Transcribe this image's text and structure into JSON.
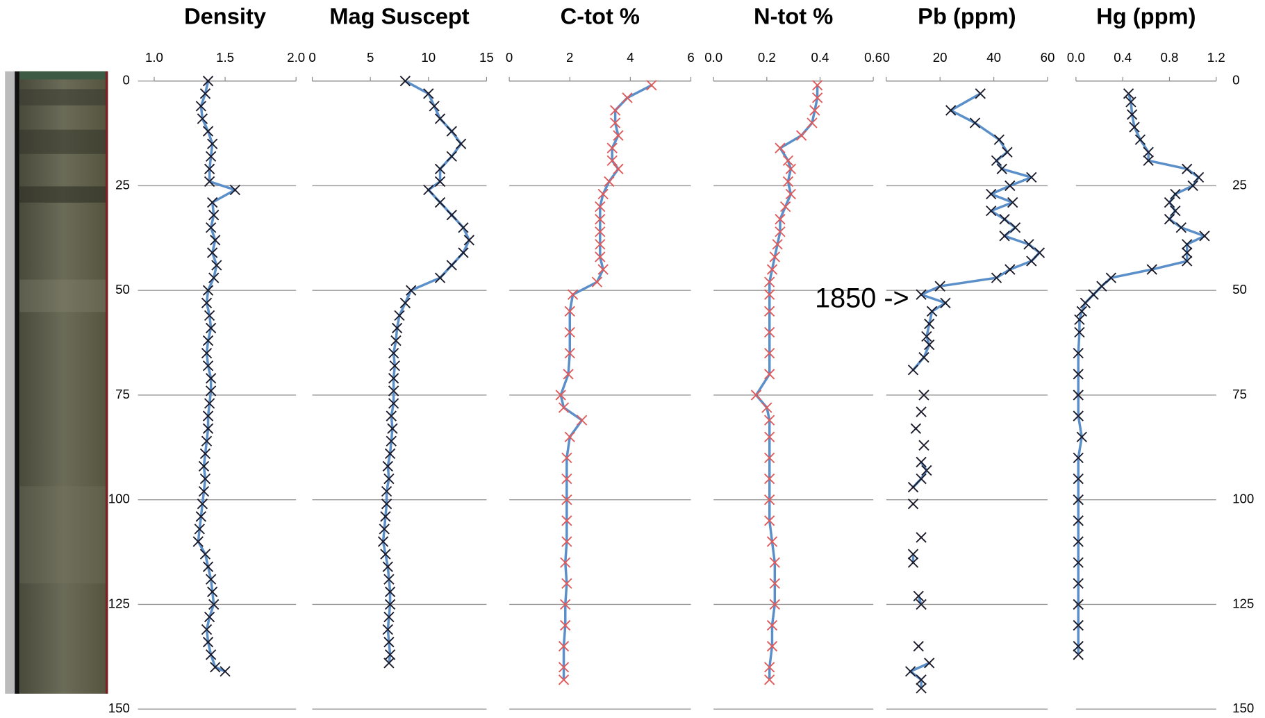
{
  "chart_data": [
    {
      "type": "line",
      "title": "Density",
      "xlim": [
        1.0,
        2.0
      ],
      "xticks": [
        {
          "value": 1.0,
          "label": "1.0"
        },
        1.5,
        {
          "value": 2.0,
          "label": "2.0"
        }
      ],
      "ylim": [
        0,
        150
      ],
      "yticks": [
        0,
        25,
        50,
        75,
        100,
        125,
        150
      ],
      "series": [
        {
          "color": "#5b8fc9",
          "marker_color": "#1a1a2a",
          "y": [
            0,
            3,
            6,
            9,
            12,
            15,
            18,
            21,
            24,
            26,
            29,
            32,
            35,
            38,
            41,
            44,
            47,
            50,
            53,
            56,
            59,
            62,
            65,
            68,
            71,
            74,
            77,
            80,
            83,
            86,
            89,
            92,
            95,
            98,
            101,
            104,
            107,
            110,
            113,
            116,
            119,
            122,
            125,
            128,
            131,
            134,
            137,
            140,
            141
          ],
          "values": [
            1.38,
            1.36,
            1.33,
            1.34,
            1.38,
            1.41,
            1.4,
            1.39,
            1.39,
            1.57,
            1.41,
            1.42,
            1.4,
            1.43,
            1.41,
            1.44,
            1.42,
            1.38,
            1.37,
            1.39,
            1.4,
            1.38,
            1.37,
            1.38,
            1.4,
            1.4,
            1.39,
            1.38,
            1.38,
            1.37,
            1.36,
            1.35,
            1.36,
            1.35,
            1.34,
            1.33,
            1.32,
            1.31,
            1.36,
            1.38,
            1.4,
            1.41,
            1.42,
            1.39,
            1.37,
            1.38,
            1.4,
            1.43,
            1.5
          ]
        }
      ]
    },
    {
      "type": "line",
      "title": "Mag Suscept",
      "xlim": [
        0,
        15
      ],
      "xticks": [
        0,
        5,
        10,
        15
      ],
      "ylim": [
        0,
        150
      ],
      "yticks": [
        0,
        25,
        50,
        75,
        100,
        125,
        150
      ],
      "series": [
        {
          "color": "#5b8fc9",
          "marker_color": "#1a1a2a",
          "y": [
            0,
            3,
            6,
            9,
            12,
            15,
            18,
            21,
            24,
            26,
            29,
            32,
            35,
            38,
            41,
            44,
            47,
            50,
            53,
            56,
            59,
            62,
            65,
            68,
            71,
            74,
            77,
            80,
            83,
            86,
            89,
            92,
            95,
            98,
            101,
            104,
            107,
            110,
            113,
            116,
            119,
            122,
            125,
            128,
            131,
            134,
            137,
            139
          ],
          "values": [
            8,
            10,
            10.5,
            11,
            12,
            12.8,
            12,
            11,
            11,
            10,
            11,
            12,
            13,
            13.5,
            13,
            12,
            11,
            8.5,
            8,
            7.5,
            7.3,
            7.2,
            7,
            7.1,
            7,
            7,
            7,
            6.8,
            6.9,
            6.8,
            6.7,
            6.5,
            6.6,
            6.4,
            6.4,
            6.3,
            6.2,
            6.1,
            6.3,
            6.5,
            6.6,
            6.7,
            6.7,
            6.6,
            6.5,
            6.6,
            6.7,
            6.6
          ]
        }
      ]
    },
    {
      "type": "line",
      "title": "C-tot %",
      "xlim": [
        0,
        6
      ],
      "xticks": [
        0,
        2,
        4,
        6
      ],
      "ylim": [
        0,
        150
      ],
      "yticks": [
        0,
        25,
        50,
        75,
        100,
        125,
        150
      ],
      "series": [
        {
          "color": "#5b8fc9",
          "marker_color": "#e05a5a",
          "y": [
            1,
            4,
            7,
            10,
            13,
            16,
            19,
            21,
            24,
            27,
            30,
            33,
            36,
            39,
            42,
            45,
            48,
            51,
            55,
            60,
            65,
            70,
            75,
            78,
            81,
            85,
            90,
            95,
            100,
            105,
            110,
            115,
            120,
            125,
            130,
            135,
            140,
            143
          ],
          "values": [
            4.7,
            3.9,
            3.5,
            3.5,
            3.6,
            3.4,
            3.4,
            3.6,
            3.3,
            3.1,
            3.0,
            3.0,
            3.0,
            3.0,
            3.0,
            3.1,
            2.9,
            2.1,
            2.0,
            2.0,
            2.0,
            1.95,
            1.7,
            1.8,
            2.4,
            2.0,
            1.9,
            1.9,
            1.9,
            1.9,
            1.9,
            1.85,
            1.9,
            1.85,
            1.85,
            1.8,
            1.8,
            1.8
          ]
        }
      ]
    },
    {
      "type": "line",
      "title": "N-tot %",
      "xlim": [
        0,
        0.6
      ],
      "xticks": [
        {
          "value": 0,
          "label": "0.0"
        },
        0.2,
        0.4,
        0.6
      ],
      "ylim": [
        0,
        150
      ],
      "yticks": [
        0,
        25,
        50,
        75,
        100,
        125,
        150
      ],
      "series": [
        {
          "color": "#5b8fc9",
          "marker_color": "#e05a5a",
          "y": [
            1,
            4,
            7,
            10,
            13,
            16,
            19,
            21,
            24,
            27,
            30,
            33,
            36,
            39,
            42,
            45,
            48,
            51,
            55,
            60,
            65,
            70,
            75,
            78,
            81,
            85,
            90,
            95,
            100,
            105,
            110,
            115,
            120,
            125,
            130,
            135,
            140,
            143
          ],
          "values": [
            0.39,
            0.39,
            0.38,
            0.37,
            0.33,
            0.25,
            0.28,
            0.29,
            0.28,
            0.29,
            0.27,
            0.25,
            0.25,
            0.24,
            0.23,
            0.22,
            0.21,
            0.21,
            0.21,
            0.21,
            0.21,
            0.21,
            0.16,
            0.2,
            0.21,
            0.21,
            0.21,
            0.21,
            0.21,
            0.21,
            0.22,
            0.23,
            0.23,
            0.23,
            0.22,
            0.22,
            0.21,
            0.21
          ]
        }
      ]
    },
    {
      "type": "line",
      "title": "Pb (ppm)",
      "xlim": [
        0,
        60
      ],
      "xticks": [
        0,
        20,
        40,
        60
      ],
      "ylim": [
        0,
        150
      ],
      "yticks": [
        0,
        25,
        50,
        75,
        100,
        125,
        150
      ],
      "annotation": "1850 ->",
      "series": [
        {
          "color": "#5b8fc9",
          "marker_color": "#1a1a2a",
          "y": [
            3,
            7,
            10,
            14,
            17,
            19,
            21,
            23,
            25,
            27,
            29,
            31,
            33,
            35,
            37,
            39,
            41,
            43,
            45,
            47,
            49,
            51,
            53,
            55,
            58,
            61,
            63,
            66,
            69,
            null,
            75,
            null,
            79,
            null,
            83,
            null,
            87,
            null,
            91,
            93,
            95,
            97,
            null,
            101,
            null,
            109,
            null,
            113,
            115,
            null,
            123,
            125,
            null,
            135,
            null,
            139,
            141,
            143,
            145
          ],
          "values": [
            35,
            24,
            33,
            42,
            45,
            41,
            43,
            54,
            46,
            39,
            47,
            39,
            44,
            48,
            44,
            53,
            57,
            54,
            46,
            41,
            20,
            13,
            22,
            17,
            16,
            15,
            16,
            14,
            10,
            null,
            14,
            null,
            13,
            null,
            11,
            null,
            14,
            null,
            13,
            15,
            13,
            10,
            null,
            10,
            null,
            13,
            null,
            10,
            10,
            null,
            12,
            13,
            null,
            12,
            null,
            16,
            9,
            13,
            13
          ]
        }
      ]
    },
    {
      "type": "line",
      "title": "Hg (ppm)",
      "xlim": [
        0,
        1.2
      ],
      "xticks": [
        {
          "value": 0,
          "label": "0.0"
        },
        0.4,
        0.8,
        1.2
      ],
      "ylim": [
        0,
        150
      ],
      "yticks": [
        0,
        25,
        50,
        75,
        100,
        125,
        150
      ],
      "series": [
        {
          "color": "#5b8fc9",
          "marker_color": "#1a1a2a",
          "y": [
            3,
            5,
            8,
            11,
            14,
            17,
            19,
            21,
            23,
            25,
            27,
            29,
            31,
            33,
            35,
            37,
            39,
            41,
            43,
            45,
            47,
            49,
            51,
            53,
            55,
            57,
            60,
            65,
            70,
            75,
            80,
            85,
            90,
            95,
            100,
            105,
            110,
            115,
            120,
            125,
            130,
            135,
            137
          ],
          "values": [
            0.45,
            0.47,
            0.48,
            0.5,
            0.55,
            0.62,
            0.62,
            0.95,
            1.05,
            1.0,
            0.85,
            0.8,
            0.85,
            0.8,
            0.9,
            1.1,
            0.95,
            0.95,
            0.95,
            0.65,
            0.3,
            0.22,
            0.15,
            0.08,
            0.05,
            0.03,
            0.03,
            0.02,
            0.02,
            0.02,
            0.02,
            0.05,
            0.02,
            0.02,
            0.02,
            0.02,
            0.02,
            0.02,
            0.02,
            0.02,
            0.02,
            0.02,
            0.02
          ]
        }
      ]
    }
  ]
}
